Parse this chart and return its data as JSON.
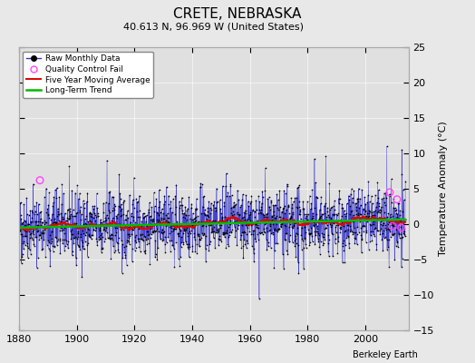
{
  "title": "CRETE, NEBRASKA",
  "subtitle": "40.613 N, 96.969 W (United States)",
  "ylabel": "Temperature Anomaly (°C)",
  "credit": "Berkeley Earth",
  "xlim": [
    1880,
    2015
  ],
  "ylim": [
    -15,
    25
  ],
  "yticks": [
    -15,
    -10,
    -5,
    0,
    5,
    10,
    15,
    20,
    25
  ],
  "xticks": [
    1880,
    1900,
    1920,
    1940,
    1960,
    1980,
    2000
  ],
  "bg_color": "#e8e8e8",
  "plot_bg_color": "#e0e0e0",
  "raw_line_color": "#3333cc",
  "raw_dot_color": "#000000",
  "ma_color": "#dd0000",
  "trend_color": "#00bb00",
  "qc_color": "#ff44ff",
  "seed": 42,
  "noise_std": 2.2,
  "trend_slope": 0.006,
  "start_year": 1880,
  "end_year": 2013
}
